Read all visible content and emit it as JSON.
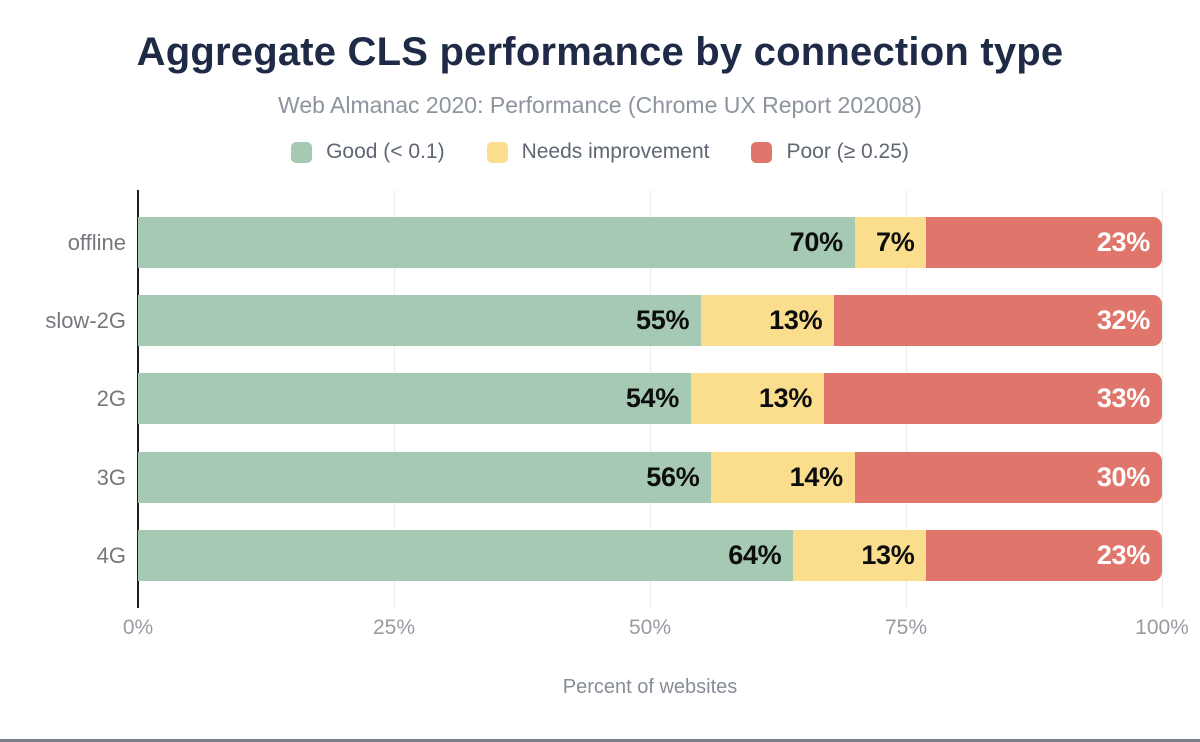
{
  "header": {
    "title": "Aggregate CLS performance by connection type",
    "subtitle": "Web Almanac 2020: Performance (Chrome UX Report 202008)"
  },
  "legend": {
    "items": [
      {
        "label": "Good (< 0.1)",
        "color": "#a6c9b4"
      },
      {
        "label": "Needs improvement",
        "color": "#fade8e"
      },
      {
        "label": "Poor (≥ 0.25)",
        "color": "#e0766b"
      }
    ]
  },
  "chart_data": {
    "type": "bar",
    "orientation": "horizontal",
    "stacked": true,
    "title": "Aggregate CLS performance by connection type",
    "subtitle": "Web Almanac 2020: Performance (Chrome UX Report 202008)",
    "categories": [
      "offline",
      "slow-2G",
      "2G",
      "3G",
      "4G"
    ],
    "series": [
      {
        "name": "Good (< 0.1)",
        "color": "#a6c9b4",
        "label_color": "#0d0d0d",
        "values": [
          70,
          55,
          54,
          56,
          64
        ]
      },
      {
        "name": "Needs improvement",
        "color": "#fade8e",
        "label_color": "#0d0d0d",
        "values": [
          7,
          13,
          13,
          14,
          13
        ]
      },
      {
        "name": "Poor (≥ 0.25)",
        "color": "#e0766b",
        "label_color": "#ffffff",
        "values": [
          23,
          32,
          33,
          30,
          23
        ]
      }
    ],
    "xlabel": "Percent of websites",
    "xlim": [
      0,
      100
    ],
    "x_ticks": [
      "0%",
      "25%",
      "50%",
      "75%",
      "100%"
    ],
    "value_suffix": "%",
    "grid": "vertical",
    "legend_position": "top",
    "colors": {
      "title": "#1f2a47",
      "subtitle": "#8d949e",
      "axis_line": "#1b1d20",
      "gridline": "#ececec",
      "tick_label": "#989ba1"
    }
  }
}
